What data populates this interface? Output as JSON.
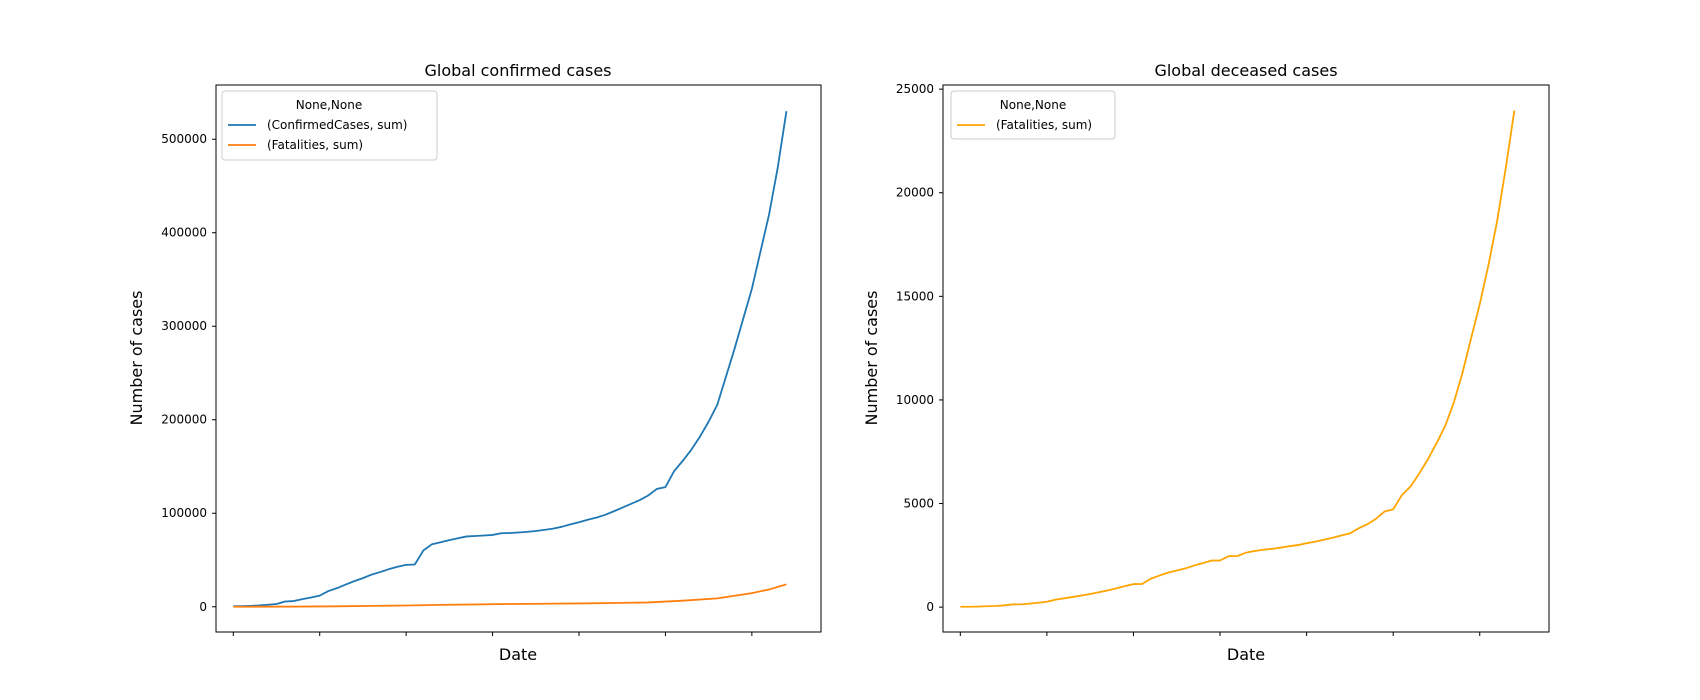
{
  "chart_data": [
    {
      "type": "line",
      "title": "Global confirmed cases",
      "xlabel": "Date",
      "ylabel": "Number of cases",
      "xlim": [
        -2,
        68
      ],
      "ylim": [
        -27000,
        558000
      ],
      "yticks": [
        0,
        100000,
        200000,
        300000,
        400000,
        500000
      ],
      "ytick_labels": [
        "0",
        "100000",
        "200000",
        "300000",
        "400000",
        "500000"
      ],
      "xticks": [
        0,
        10,
        20,
        30,
        40,
        50,
        60
      ],
      "grid": false,
      "legend": {
        "title": "None,None",
        "position": "top-left"
      },
      "series": [
        {
          "name": "(ConfirmedCases, sum)",
          "color": "#1f77b4",
          "points": [
            [
              0,
              550
            ],
            [
              1,
              650
            ],
            [
              2,
              950
            ],
            [
              3,
              1400
            ],
            [
              4,
              2100
            ],
            [
              5,
              2900
            ],
            [
              6,
              5600
            ],
            [
              7,
              6100
            ],
            [
              8,
              8200
            ],
            [
              9,
              9900
            ],
            [
              10,
              11900
            ],
            [
              11,
              16800
            ],
            [
              12,
              19900
            ],
            [
              13,
              23700
            ],
            [
              14,
              27400
            ],
            [
              15,
              30600
            ],
            [
              16,
              34400
            ],
            [
              17,
              37100
            ],
            [
              18,
              40200
            ],
            [
              19,
              42800
            ],
            [
              20,
              44800
            ],
            [
              21,
              45200
            ],
            [
              22,
              60300
            ],
            [
              23,
              66900
            ],
            [
              24,
              69000
            ],
            [
              25,
              71200
            ],
            [
              26,
              73300
            ],
            [
              27,
              75200
            ],
            [
              28,
              75700
            ],
            [
              29,
              76200
            ],
            [
              30,
              76800
            ],
            [
              31,
              78600
            ],
            [
              32,
              78900
            ],
            [
              33,
              79400
            ],
            [
              34,
              80100
            ],
            [
              35,
              81000
            ],
            [
              36,
              82200
            ],
            [
              37,
              83600
            ],
            [
              38,
              85500
            ],
            [
              39,
              88100
            ],
            [
              40,
              90400
            ],
            [
              41,
              93100
            ],
            [
              42,
              95300
            ],
            [
              43,
              98200
            ],
            [
              44,
              102000
            ],
            [
              45,
              106000
            ],
            [
              46,
              110000
            ],
            [
              47,
              114000
            ],
            [
              48,
              119000
            ],
            [
              49,
              126000
            ],
            [
              50,
              128000
            ],
            [
              51,
              145000
            ],
            [
              52,
              156000
            ],
            [
              53,
              168000
            ],
            [
              54,
              182000
            ],
            [
              55,
              198000
            ],
            [
              56,
              216000
            ],
            [
              57,
              246000
            ],
            [
              58,
              276000
            ],
            [
              59,
              308000
            ],
            [
              60,
              340000
            ],
            [
              61,
              380000
            ],
            [
              62,
              420000
            ],
            [
              63,
              470000
            ],
            [
              64,
              530000
            ]
          ]
        },
        {
          "name": "(Fatalities, sum)",
          "color": "#ff7f0e",
          "points": [
            [
              0,
              17
            ],
            [
              4,
              80
            ],
            [
              8,
              210
            ],
            [
              12,
              490
            ],
            [
              16,
              900
            ],
            [
              20,
              1370
            ],
            [
              24,
              2000
            ],
            [
              28,
              2500
            ],
            [
              32,
              2950
            ],
            [
              36,
              3200
            ],
            [
              40,
              3550
            ],
            [
              44,
              4000
            ],
            [
              48,
              4600
            ],
            [
              52,
              6500
            ],
            [
              56,
              9000
            ],
            [
              60,
              14600
            ],
            [
              62,
              18500
            ],
            [
              64,
              24000
            ]
          ]
        }
      ]
    },
    {
      "type": "line",
      "title": "Global deceased cases",
      "xlabel": "Date",
      "ylabel": "Number of cases",
      "xlim": [
        -2,
        68
      ],
      "ylim": [
        -1200,
        25200
      ],
      "yticks": [
        0,
        5000,
        10000,
        15000,
        20000,
        25000
      ],
      "ytick_labels": [
        "0",
        "5000",
        "10000",
        "15000",
        "20000",
        "25000"
      ],
      "xticks": [
        0,
        10,
        20,
        30,
        40,
        50,
        60
      ],
      "grid": false,
      "legend": {
        "title": "None,None",
        "position": "top-left"
      },
      "series": [
        {
          "name": "(Fatalities, sum)",
          "color": "#ffa500",
          "points": [
            [
              0,
              17
            ],
            [
              1,
              18
            ],
            [
              2,
              26
            ],
            [
              3,
              42
            ],
            [
              4,
              56
            ],
            [
              5,
              82
            ],
            [
              6,
              131
            ],
            [
              7,
              133
            ],
            [
              8,
              171
            ],
            [
              9,
              213
            ],
            [
              10,
              259
            ],
            [
              11,
              362
            ],
            [
              12,
              426
            ],
            [
              13,
              492
            ],
            [
              14,
              564
            ],
            [
              15,
              634
            ],
            [
              16,
              719
            ],
            [
              17,
              806
            ],
            [
              18,
              906
            ],
            [
              19,
              1013
            ],
            [
              20,
              1113
            ],
            [
              21,
              1118
            ],
            [
              22,
              1371
            ],
            [
              23,
              1523
            ],
            [
              24,
              1666
            ],
            [
              25,
              1770
            ],
            [
              26,
              1868
            ],
            [
              27,
              2007
            ],
            [
              28,
              2122
            ],
            [
              29,
              2247
            ],
            [
              30,
              2251
            ],
            [
              31,
              2458
            ],
            [
              32,
              2469
            ],
            [
              33,
              2629
            ],
            [
              34,
              2708
            ],
            [
              35,
              2770
            ],
            [
              36,
              2814
            ],
            [
              37,
              2872
            ],
            [
              38,
              2941
            ],
            [
              39,
              2996
            ],
            [
              40,
              3085
            ],
            [
              41,
              3160
            ],
            [
              42,
              3254
            ],
            [
              43,
              3348
            ],
            [
              44,
              3460
            ],
            [
              45,
              3558
            ],
            [
              46,
              3803
            ],
            [
              47,
              3996
            ],
            [
              48,
              4262
            ],
            [
              49,
              4615
            ],
            [
              50,
              4720
            ],
            [
              51,
              5404
            ],
            [
              52,
              5819
            ],
            [
              53,
              6440
            ],
            [
              54,
              7126
            ],
            [
              55,
              7905
            ],
            [
              56,
              8733
            ],
            [
              57,
              9867
            ],
            [
              58,
              11299
            ],
            [
              59,
              12973
            ],
            [
              60,
              14623
            ],
            [
              61,
              16497
            ],
            [
              62,
              18615
            ],
            [
              63,
              21181
            ],
            [
              64,
              23970
            ]
          ]
        }
      ]
    }
  ]
}
